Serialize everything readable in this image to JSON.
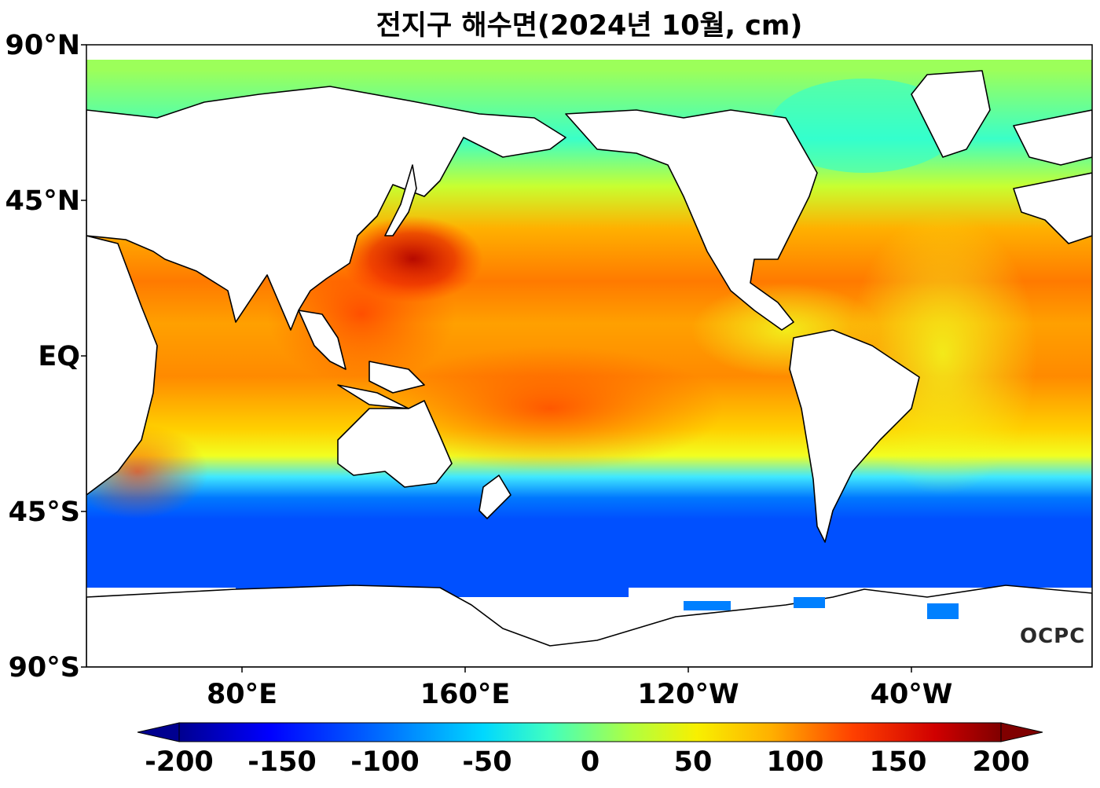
{
  "title": "전지구 해수면(2024년 10월, cm)",
  "lat_labels": [
    "90°N",
    "45°N",
    "EQ",
    "45°S",
    "90°S"
  ],
  "lon_labels": [
    "80°E",
    "160°E",
    "120°W",
    "40°W"
  ],
  "colorbar": {
    "ticks": [
      "-200",
      "-150",
      "-100",
      "-50",
      "0",
      "50",
      "100",
      "150",
      "200"
    ],
    "stops": [
      "#000080",
      "#0000ff",
      "#0060ff",
      "#00c8ff",
      "#20ffe0",
      "#80ff70",
      "#e8ff20",
      "#ffd000",
      "#ff8000",
      "#ff3000",
      "#c00000",
      "#800000"
    ]
  },
  "credit": "OCPC"
}
